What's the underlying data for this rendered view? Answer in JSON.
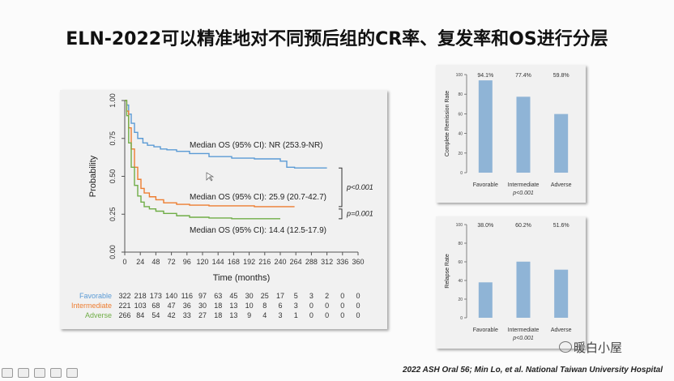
{
  "slide": {
    "title": "ELN-2022可以精准地对不同预后组的CR率、复发率和OS进行分层",
    "footnote": "2022 ASH Oral 56; Min Lo, et al. National Taiwan University Hospital",
    "watermark": "暖白小屋"
  },
  "chart_data": [
    {
      "type": "line",
      "ylabel": "Probability",
      "xlabel": "Time (months)",
      "xlim": [
        0,
        360
      ],
      "ylim": [
        0,
        1
      ],
      "x_ticks": [
        "0",
        "24",
        "48",
        "72",
        "96",
        "120",
        "144",
        "168",
        "192",
        "216",
        "240",
        "264",
        "288",
        "312",
        "336",
        "360"
      ],
      "y_ticks": [
        "0.00",
        "0.25",
        "0.50",
        "0.75",
        "1.00"
      ],
      "series": [
        {
          "name": "Favorable",
          "color": "#5b9bd5",
          "x": [
            0,
            3,
            6,
            10,
            15,
            20,
            28,
            35,
            45,
            55,
            65,
            80,
            100,
            130,
            165,
            200,
            240,
            250,
            262,
            312
          ],
          "y": [
            1.0,
            0.97,
            0.91,
            0.85,
            0.79,
            0.75,
            0.72,
            0.705,
            0.695,
            0.68,
            0.675,
            0.665,
            0.65,
            0.63,
            0.62,
            0.615,
            0.6,
            0.56,
            0.555,
            0.555
          ]
        },
        {
          "name": "Intermediate",
          "color": "#ed7d31",
          "x": [
            0,
            3,
            6,
            10,
            15,
            20,
            25,
            30,
            38,
            48,
            60,
            80,
            100,
            130,
            165,
            200,
            262
          ],
          "y": [
            1.0,
            0.93,
            0.82,
            0.68,
            0.56,
            0.48,
            0.42,
            0.39,
            0.365,
            0.345,
            0.325,
            0.315,
            0.31,
            0.305,
            0.305,
            0.3,
            0.3
          ]
        },
        {
          "name": "Adverse",
          "color": "#70ad47",
          "x": [
            0,
            3,
            6,
            10,
            15,
            20,
            25,
            30,
            38,
            48,
            60,
            80,
            100,
            130,
            165,
            200,
            240
          ],
          "y": [
            1.0,
            0.9,
            0.72,
            0.56,
            0.44,
            0.37,
            0.33,
            0.3,
            0.285,
            0.27,
            0.255,
            0.24,
            0.23,
            0.225,
            0.22,
            0.22,
            0.22
          ]
        }
      ],
      "annotations": [
        "Median OS (95% CI): NR (253.9-NR)",
        "Median OS (95% CI): 25.9 (20.7-42.7)",
        "Median OS (95% CI): 14.4 (12.5-17.9)",
        "p<0.001",
        "p=0.001"
      ],
      "risk_table": [
        {
          "label": "Favorable",
          "color": "#5b9bd5",
          "values": [
            "322",
            "218",
            "173",
            "140",
            "116",
            "97",
            "63",
            "45",
            "30",
            "25",
            "17",
            "5",
            "3",
            "2",
            "0",
            "0"
          ]
        },
        {
          "label": "Intermediate",
          "color": "#ed7d31",
          "values": [
            "221",
            "103",
            "68",
            "47",
            "36",
            "30",
            "18",
            "13",
            "10",
            "8",
            "6",
            "3",
            "0",
            "0",
            "0",
            "0"
          ]
        },
        {
          "label": "Adverse",
          "color": "#70ad47",
          "values": [
            "266",
            "84",
            "54",
            "42",
            "33",
            "27",
            "18",
            "13",
            "9",
            "4",
            "3",
            "1",
            "0",
            "0",
            "0",
            "0"
          ]
        }
      ]
    },
    {
      "type": "bar",
      "ylabel": "Complete Remission Rate",
      "ylim": [
        0,
        100
      ],
      "y_ticks": [
        "0",
        "20",
        "40",
        "60",
        "80",
        "100"
      ],
      "categories": [
        "Favorable",
        "Intermediate",
        "Adverse"
      ],
      "values": [
        94.1,
        77.4,
        59.8
      ],
      "data_labels": [
        "94.1%",
        "77.4%",
        "59.8%"
      ],
      "caption": "p<0.001",
      "bar_color": "#8fb4d6"
    },
    {
      "type": "bar",
      "ylabel": "Relapse Rate",
      "ylim": [
        0,
        100
      ],
      "y_ticks": [
        "0",
        "20",
        "40",
        "60",
        "80",
        "100"
      ],
      "categories": [
        "Favorable",
        "Intermediate",
        "Adverse"
      ],
      "values": [
        38.0,
        60.2,
        51.6
      ],
      "data_labels": [
        "38.0%",
        "60.2%",
        "51.6%"
      ],
      "caption": "p<0.001",
      "bar_color": "#8fb4d6"
    }
  ]
}
